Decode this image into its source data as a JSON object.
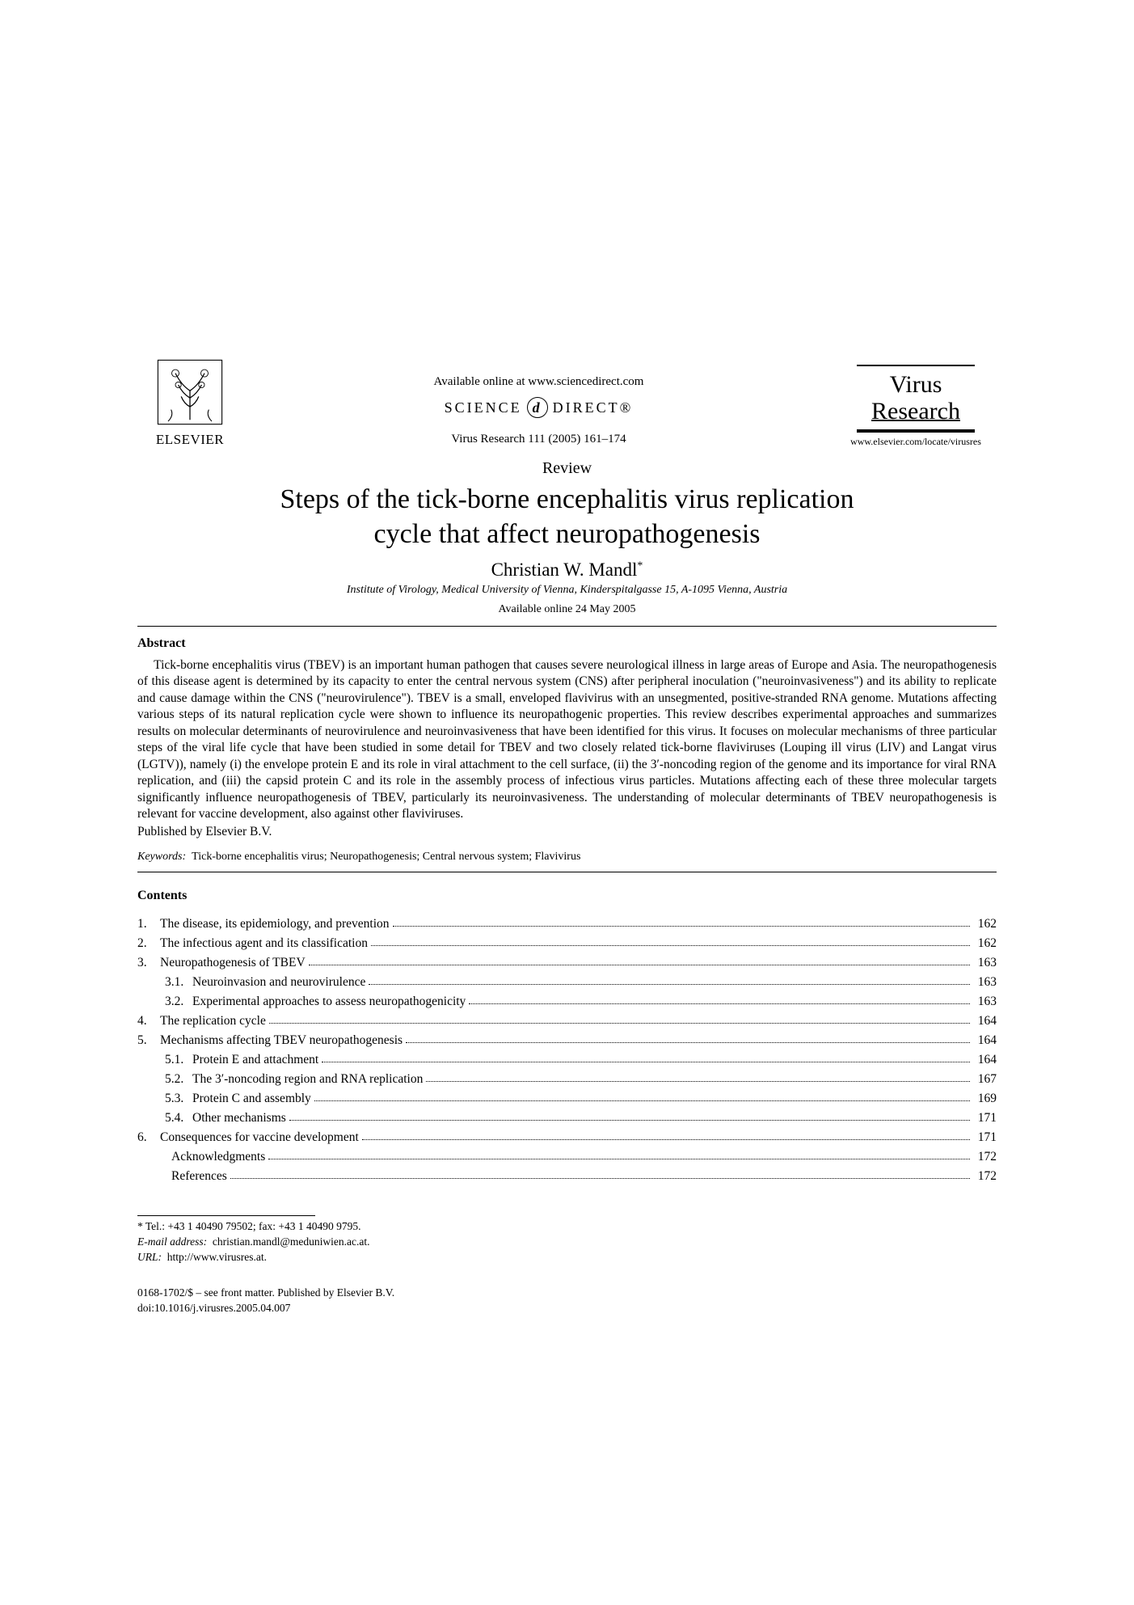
{
  "header": {
    "publisher": "ELSEVIER",
    "available_online": "Available online at www.sciencedirect.com",
    "sciencedirect_left": "SCIENCE",
    "sciencedirect_right": "DIRECT®",
    "citation": "Virus Research 111 (2005) 161–174",
    "journal_line1": "Virus",
    "journal_line2": "Research",
    "journal_url": "www.elsevier.com/locate/virusres"
  },
  "article": {
    "type": "Review",
    "title_line1": "Steps of the tick-borne encephalitis virus replication",
    "title_line2": "cycle that affect neuropathogenesis",
    "author": "Christian W. Mandl",
    "author_marker": "*",
    "affiliation": "Institute of Virology, Medical University of Vienna, Kinderspitalgasse 15, A-1095 Vienna, Austria",
    "available_date": "Available online 24 May 2005"
  },
  "abstract": {
    "heading": "Abstract",
    "body": "Tick-borne encephalitis virus (TBEV) is an important human pathogen that causes severe neurological illness in large areas of Europe and Asia. The neuropathogenesis of this disease agent is determined by its capacity to enter the central nervous system (CNS) after peripheral inoculation (\"neuroinvasiveness\") and its ability to replicate and cause damage within the CNS (\"neurovirulence\"). TBEV is a small, enveloped flavivirus with an unsegmented, positive-stranded RNA genome. Mutations affecting various steps of its natural replication cycle were shown to influence its neuropathogenic properties. This review describes experimental approaches and summarizes results on molecular determinants of neurovirulence and neuroinvasiveness that have been identified for this virus. It focuses on molecular mechanisms of three particular steps of the viral life cycle that have been studied in some detail for TBEV and two closely related tick-borne flaviviruses (Louping ill virus (LIV) and Langat virus (LGTV)), namely (i) the envelope protein E and its role in viral attachment to the cell surface, (ii) the 3′-noncoding region of the genome and its importance for viral RNA replication, and (iii) the capsid protein C and its role in the assembly process of infectious virus particles. Mutations affecting each of these three molecular targets significantly influence neuropathogenesis of TBEV, particularly its neuroinvasiveness. The understanding of molecular determinants of TBEV neuropathogenesis is relevant for vaccine development, also against other flaviviruses.",
    "published": "Published by Elsevier B.V."
  },
  "keywords": {
    "label": "Keywords:",
    "text": "Tick-borne encephalitis virus; Neuropathogenesis; Central nervous system; Flavivirus"
  },
  "contents": {
    "heading": "Contents",
    "items": [
      {
        "num": "1.",
        "sub": false,
        "title": "The disease, its epidemiology, and prevention",
        "page": "162"
      },
      {
        "num": "2.",
        "sub": false,
        "title": "The infectious agent and its classification",
        "page": "162"
      },
      {
        "num": "3.",
        "sub": false,
        "title": "Neuropathogenesis of TBEV",
        "page": "163"
      },
      {
        "num": "3.1.",
        "sub": true,
        "title": "Neuroinvasion and neurovirulence",
        "page": "163"
      },
      {
        "num": "3.2.",
        "sub": true,
        "title": "Experimental approaches to assess neuropathogenicity",
        "page": "163"
      },
      {
        "num": "4.",
        "sub": false,
        "title": "The replication cycle",
        "page": "164"
      },
      {
        "num": "5.",
        "sub": false,
        "title": "Mechanisms affecting TBEV neuropathogenesis",
        "page": "164"
      },
      {
        "num": "5.1.",
        "sub": true,
        "title": "Protein E and attachment",
        "page": "164"
      },
      {
        "num": "5.2.",
        "sub": true,
        "title": "The 3′-noncoding region and RNA replication",
        "page": "167"
      },
      {
        "num": "5.3.",
        "sub": true,
        "title": "Protein C and assembly",
        "page": "169"
      },
      {
        "num": "5.4.",
        "sub": true,
        "title": "Other mechanisms",
        "page": "171"
      },
      {
        "num": "6.",
        "sub": false,
        "title": "Consequences for vaccine development",
        "page": "171"
      },
      {
        "num": "",
        "sub": true,
        "title": "Acknowledgments",
        "page": "172"
      },
      {
        "num": "",
        "sub": true,
        "title": "References",
        "page": "172"
      }
    ]
  },
  "footnotes": {
    "corr": "* Tel.: +43 1 40490 79502; fax: +43 1 40490 9795.",
    "email_label": "E-mail address:",
    "email": "christian.mandl@meduniwien.ac.at.",
    "url_label": "URL:",
    "url": "http://www.virusres.at."
  },
  "doi": {
    "front_matter": "0168-1702/$ – see front matter. Published by Elsevier B.V.",
    "doi": "doi:10.1016/j.virusres.2005.04.007"
  },
  "colors": {
    "background": "#ffffff",
    "text": "#000000",
    "rule": "#000000",
    "elsevier_orange": "#e8762c"
  }
}
